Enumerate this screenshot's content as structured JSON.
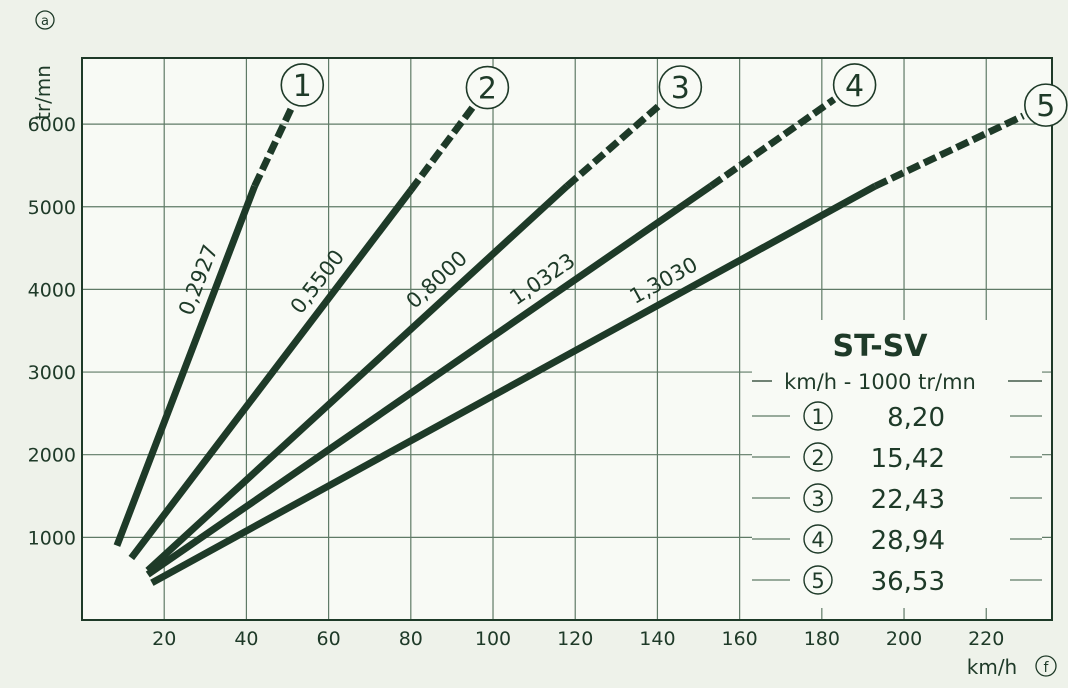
{
  "chart_data": {
    "type": "line",
    "ylabel": "tr/mn",
    "ylabel_mark": "a",
    "xlabel": "km/h",
    "xlabel_mark": "f",
    "xlim": [
      0,
      236
    ],
    "ylim": [
      0,
      6800
    ],
    "x_ticks": [
      "20",
      "40",
      "60",
      "80",
      "100",
      "120",
      "140",
      "160",
      "180",
      "200",
      "220"
    ],
    "x_tick_values": [
      20,
      40,
      60,
      80,
      100,
      120,
      140,
      160,
      180,
      200,
      220
    ],
    "y_ticks": [
      "1000",
      "2000",
      "3000",
      "4000",
      "5000",
      "6000"
    ],
    "y_tick_values": [
      1000,
      2000,
      3000,
      4000,
      5000,
      6000
    ],
    "grid": true,
    "series": [
      {
        "name": "1",
        "ratio": "0,2927",
        "solid": [
          [
            8.5,
            900
          ],
          [
            42,
            5250
          ]
        ],
        "dashed": [
          [
            42,
            5250
          ],
          [
            51,
            6200
          ]
        ]
      },
      {
        "name": "2",
        "ratio": "0,5500",
        "solid": [
          [
            12,
            750
          ],
          [
            80,
            5200
          ]
        ],
        "dashed": [
          [
            80,
            5200
          ],
          [
            95,
            6200
          ]
        ]
      },
      {
        "name": "3",
        "ratio": "0,8000",
        "solid": [
          [
            16,
            600
          ],
          [
            118,
            5250
          ]
        ],
        "dashed": [
          [
            118,
            5250
          ],
          [
            141,
            6250
          ]
        ]
      },
      {
        "name": "4",
        "ratio": "1,0323",
        "solid": [
          [
            16,
            550
          ],
          [
            153,
            5250
          ]
        ],
        "dashed": [
          [
            153,
            5250
          ],
          [
            183,
            6300
          ]
        ]
      },
      {
        "name": "5",
        "ratio": "1,3030",
        "solid": [
          [
            17,
            450
          ],
          [
            193,
            5250
          ]
        ],
        "dashed": [
          [
            193,
            5250
          ],
          [
            229,
            6100
          ]
        ]
      }
    ],
    "legend": {
      "title": "ST-SV",
      "subtitle": "km/h - 1000 tr/mn",
      "placement": "bottom-right",
      "rows": [
        {
          "num": "1",
          "value": "8,20"
        },
        {
          "num": "2",
          "value": "15,42"
        },
        {
          "num": "3",
          "value": "22,43"
        },
        {
          "num": "4",
          "value": "28,94"
        },
        {
          "num": "5",
          "value": "36,53"
        }
      ]
    },
    "colors": {
      "ink": "#1e3a28",
      "grid": "#5f7a66",
      "background": "#eef2ea",
      "paper": "#f8faf5"
    }
  }
}
